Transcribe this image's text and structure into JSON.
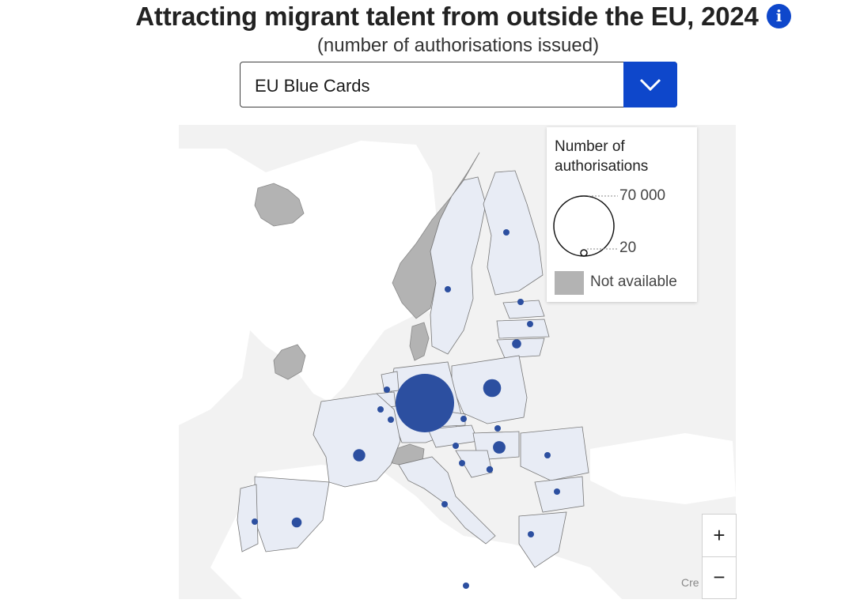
{
  "header": {
    "title": "Attracting migrant talent from outside the EU, 2024",
    "subtitle": "(number of authorisations issued)"
  },
  "dropdown": {
    "selected": "EU Blue Cards"
  },
  "legend": {
    "title": "Number of authorisations",
    "max_label": "70 000",
    "min_label": "20",
    "na_label": "Not available"
  },
  "colors": {
    "accent": "#0e47cb",
    "bubble": "#2c4fa0",
    "eu_land": "#e8ecf5",
    "not_available": "#b3b3b3",
    "background_land": "#f2f2f2",
    "sea": "#ffffff"
  },
  "bubbles": [
    {
      "country": "Germany",
      "value": 70000
    },
    {
      "country": "Poland",
      "value": 6500
    },
    {
      "country": "France",
      "value": 3000
    },
    {
      "country": "Spain",
      "value": 2000
    },
    {
      "country": "Hungary",
      "value": 3200
    },
    {
      "country": "Lithuania",
      "value": 1700
    },
    {
      "country": "Portugal",
      "value": 700
    },
    {
      "country": "Sweden",
      "value": 600
    },
    {
      "country": "Finland",
      "value": 600
    },
    {
      "country": "Latvia",
      "value": 600
    },
    {
      "country": "Estonia",
      "value": 700
    },
    {
      "country": "Romania",
      "value": 600
    },
    {
      "country": "Bulgaria",
      "value": 600
    },
    {
      "country": "Greece",
      "value": 600
    },
    {
      "country": "Italy",
      "value": 600
    },
    {
      "country": "Croatia",
      "value": 900
    },
    {
      "country": "Slovenia",
      "value": 600
    },
    {
      "country": "Austria",
      "value": 600
    },
    {
      "country": "Czechia",
      "value": 600
    },
    {
      "country": "Slovakia",
      "value": 600
    },
    {
      "country": "Belgium",
      "value": 600
    },
    {
      "country": "Netherlands",
      "value": 500
    },
    {
      "country": "Luxembourg",
      "value": 500
    },
    {
      "country": "Malta",
      "value": 500
    }
  ],
  "not_available": [
    "Norway",
    "Iceland",
    "Ireland",
    "Switzerland",
    "Denmark"
  ],
  "zoom": {
    "in_label": "+",
    "out_label": "−"
  },
  "credits": "Cre"
}
